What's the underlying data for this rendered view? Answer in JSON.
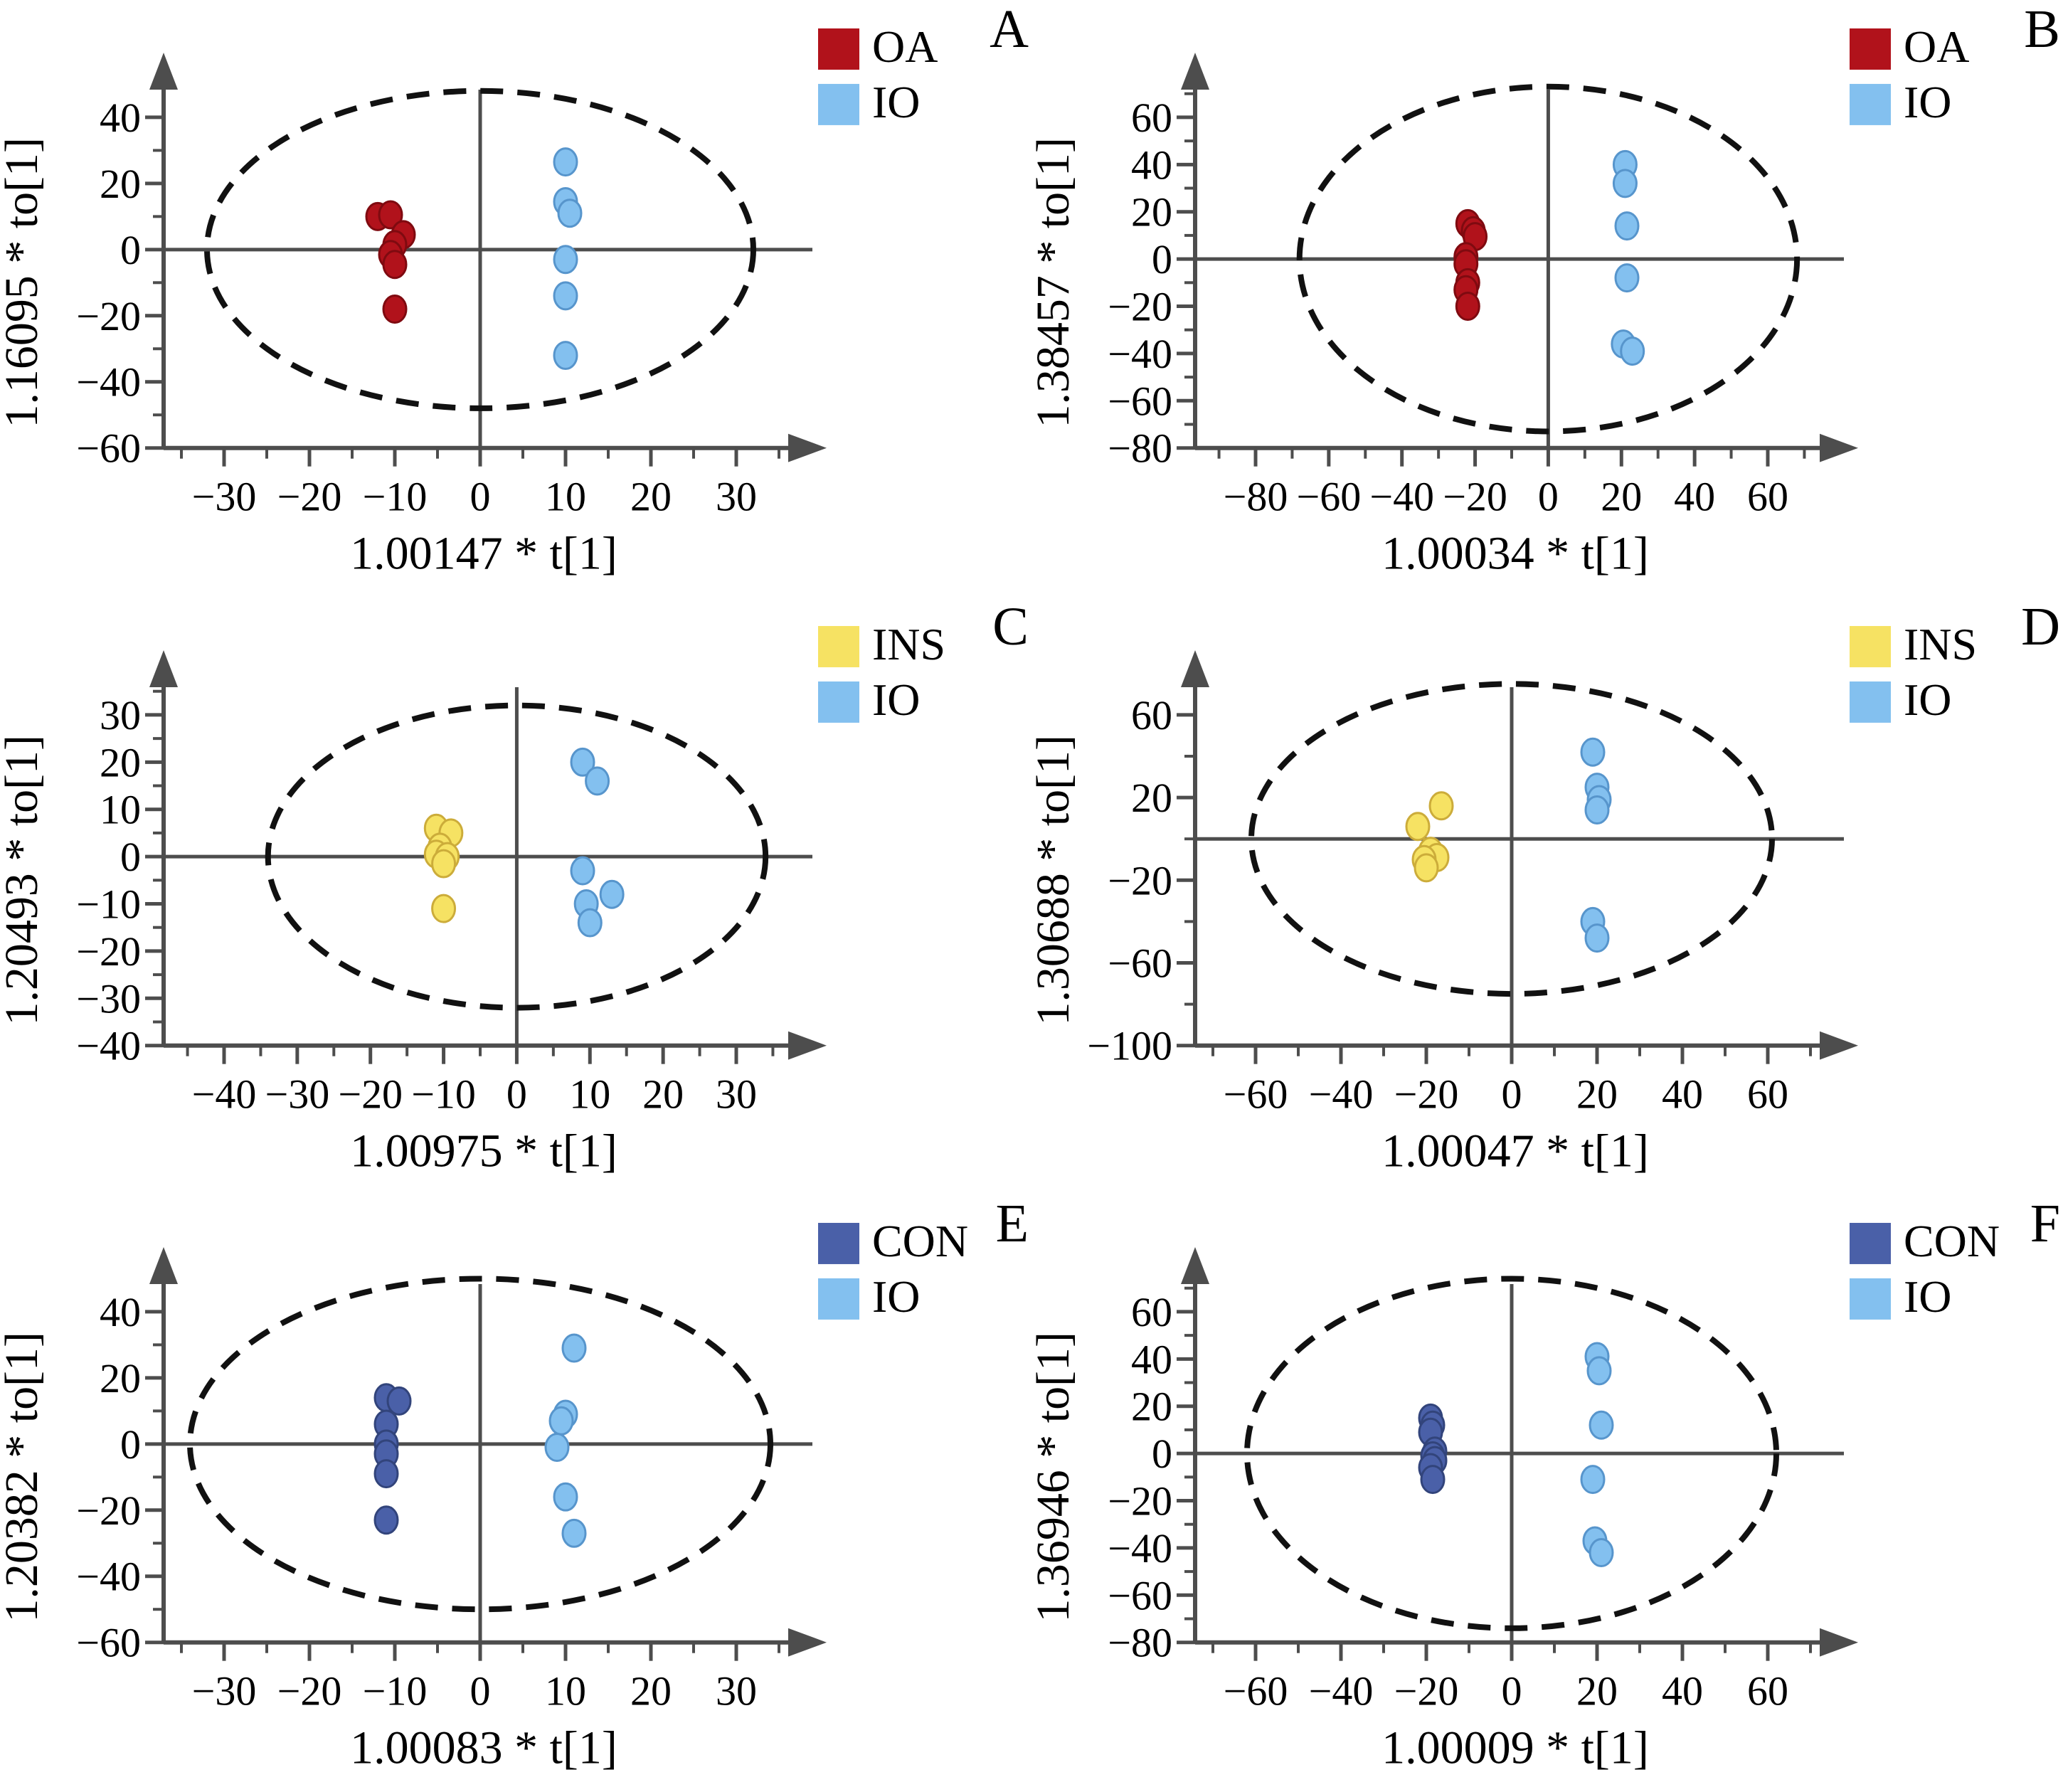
{
  "figure": {
    "background": "#ffffff",
    "axis_color": "#4d4d4d",
    "origin_line_color": "#4d4d4d",
    "ellipse_color": "#111111",
    "text_color": "#000000",
    "groups": {
      "OA": {
        "fill": "#b1121b",
        "stroke": "#7f0a10"
      },
      "IO": {
        "fill": "#83c0ef",
        "stroke": "#5795cc"
      },
      "INS": {
        "fill": "#f6e263",
        "stroke": "#ccac3a"
      },
      "CON": {
        "fill": "#4a60a8",
        "stroke": "#32447b"
      }
    }
  },
  "chart_data": [
    {
      "type": "scatter",
      "panel_label": "A",
      "xlabel": "1.00147 * t[1]",
      "ylabel": "1.16095 * to[1]",
      "xticks": [
        -30,
        -20,
        -10,
        0,
        10,
        20,
        30
      ],
      "yticks": [
        40,
        20,
        0,
        -20,
        -40,
        -60
      ],
      "grid": false,
      "legend": [
        "OA",
        "IO"
      ],
      "legend_position": "top-right",
      "hotelling_ellipse": {
        "cx": 0,
        "cy": 0,
        "rx": 32,
        "ry": 48
      },
      "series": [
        {
          "name": "OA",
          "points": [
            [
              -12,
              10
            ],
            [
              -10.5,
              10.5
            ],
            [
              -9,
              4.5
            ],
            [
              -10,
              1.5
            ],
            [
              -10.5,
              -1.5
            ],
            [
              -10,
              -4.5
            ],
            [
              -10,
              -18
            ]
          ]
        },
        {
          "name": "IO",
          "points": [
            [
              10,
              26.5
            ],
            [
              10,
              14.5
            ],
            [
              10.5,
              11
            ],
            [
              10,
              -3
            ],
            [
              10,
              -14
            ],
            [
              10,
              -32
            ]
          ]
        }
      ]
    },
    {
      "type": "scatter",
      "panel_label": "B",
      "xlabel": "1.00034 * t[1]",
      "ylabel": "1.38457 * to[1]",
      "xticks": [
        -80,
        -60,
        -40,
        -20,
        0,
        20,
        40,
        60
      ],
      "yticks": [
        60,
        40,
        20,
        0,
        -20,
        -40,
        -60,
        -80
      ],
      "grid": false,
      "legend": [
        "OA",
        "IO"
      ],
      "legend_position": "top-right",
      "hotelling_ellipse": {
        "cx": 0,
        "cy": 0,
        "rx": 68,
        "ry": 73
      },
      "series": [
        {
          "name": "OA",
          "points": [
            [
              -22,
              15
            ],
            [
              -20.5,
              12
            ],
            [
              -20,
              9.5
            ],
            [
              -22.5,
              1
            ],
            [
              -22.5,
              -2
            ],
            [
              -22,
              -10
            ],
            [
              -22.5,
              -13
            ],
            [
              -22,
              -20
            ]
          ]
        },
        {
          "name": "IO",
          "points": [
            [
              21,
              40
            ],
            [
              21,
              32
            ],
            [
              21.5,
              14
            ],
            [
              21.5,
              -8
            ],
            [
              20.5,
              -36
            ],
            [
              23,
              -39
            ]
          ]
        }
      ]
    },
    {
      "type": "scatter",
      "panel_label": "C",
      "xlabel": "1.00975 * t[1]",
      "ylabel": "1.20493 * to[1]",
      "xticks": [
        -40,
        -30,
        -20,
        -10,
        0,
        10,
        20,
        30
      ],
      "yticks": [
        30,
        20,
        10,
        0,
        -10,
        -20,
        -30,
        -40
      ],
      "grid": false,
      "legend": [
        "INS",
        "IO"
      ],
      "legend_position": "top-right",
      "hotelling_ellipse": {
        "cx": 0,
        "cy": 0,
        "rx": 34,
        "ry": 32
      },
      "series": [
        {
          "name": "INS",
          "points": [
            [
              -11,
              6
            ],
            [
              -9,
              5
            ],
            [
              -10.5,
              2
            ],
            [
              -11,
              0.5
            ],
            [
              -9.5,
              0
            ],
            [
              -10,
              -1.5
            ],
            [
              -10,
              -11
            ]
          ]
        },
        {
          "name": "IO",
          "points": [
            [
              9,
              20
            ],
            [
              11,
              16
            ],
            [
              9,
              -3
            ],
            [
              13,
              -8
            ],
            [
              9.5,
              -10
            ],
            [
              10,
              -14
            ]
          ]
        }
      ]
    },
    {
      "type": "scatter",
      "panel_label": "D",
      "xlabel": "1.00047 * t[1]",
      "ylabel": "1.30688 * to[1]",
      "xticks": [
        -60,
        -40,
        -20,
        0,
        20,
        40,
        60
      ],
      "yticks": [
        60,
        20,
        -20,
        -60,
        -100
      ],
      "grid": false,
      "legend": [
        "INS",
        "IO"
      ],
      "legend_position": "top-right",
      "hotelling_ellipse": {
        "cx": 0,
        "cy": 0,
        "rx": 61,
        "ry": 75
      },
      "series": [
        {
          "name": "INS",
          "points": [
            [
              -16.5,
              16
            ],
            [
              -22,
              6
            ],
            [
              -19,
              -6
            ],
            [
              -17.5,
              -9
            ],
            [
              -20.5,
              -10
            ],
            [
              -20,
              -14
            ]
          ]
        },
        {
          "name": "IO",
          "points": [
            [
              19,
              42
            ],
            [
              20,
              25
            ],
            [
              20.5,
              19
            ],
            [
              20,
              14
            ],
            [
              19,
              -40
            ],
            [
              20,
              -48
            ]
          ]
        }
      ]
    },
    {
      "type": "scatter",
      "panel_label": "E",
      "xlabel": "1.00083 * t[1]",
      "ylabel": "1.20382 * to[1]",
      "xticks": [
        -30,
        -20,
        -10,
        0,
        10,
        20,
        30
      ],
      "yticks": [
        40,
        20,
        0,
        -20,
        -40,
        -60
      ],
      "grid": false,
      "legend": [
        "CON",
        "IO"
      ],
      "legend_position": "top-right",
      "hotelling_ellipse": {
        "cx": 0,
        "cy": 0,
        "rx": 34,
        "ry": 50
      },
      "series": [
        {
          "name": "CON",
          "points": [
            [
              -11,
              14
            ],
            [
              -9.5,
              13
            ],
            [
              -11,
              6
            ],
            [
              -11,
              0
            ],
            [
              -11,
              -3
            ],
            [
              -11,
              -9
            ],
            [
              -11,
              -23
            ]
          ]
        },
        {
          "name": "IO",
          "points": [
            [
              11,
              29
            ],
            [
              10,
              9
            ],
            [
              9.5,
              7
            ],
            [
              9,
              -1
            ],
            [
              10,
              -16
            ],
            [
              11,
              -27
            ]
          ]
        }
      ]
    },
    {
      "type": "scatter",
      "panel_label": "F",
      "xlabel": "1.00009 * t[1]",
      "ylabel": "1.36946 * to[1]",
      "xticks": [
        -60,
        -40,
        -20,
        0,
        20,
        40,
        60
      ],
      "yticks": [
        60,
        40,
        20,
        0,
        -20,
        -40,
        -60,
        -80
      ],
      "grid": false,
      "legend": [
        "CON",
        "IO"
      ],
      "legend_position": "top-right",
      "hotelling_ellipse": {
        "cx": 0,
        "cy": 0,
        "rx": 62,
        "ry": 74
      },
      "series": [
        {
          "name": "CON",
          "points": [
            [
              -19,
              15
            ],
            [
              -18.5,
              12
            ],
            [
              -19,
              9
            ],
            [
              -18,
              1
            ],
            [
              -18.5,
              -1
            ],
            [
              -18,
              -3
            ],
            [
              -19,
              -6
            ],
            [
              -18.5,
              -11
            ]
          ]
        },
        {
          "name": "IO",
          "points": [
            [
              20,
              41
            ],
            [
              20.5,
              35
            ],
            [
              21,
              12
            ],
            [
              19,
              -11
            ],
            [
              19.5,
              -37
            ],
            [
              21,
              -42
            ]
          ]
        }
      ]
    }
  ]
}
